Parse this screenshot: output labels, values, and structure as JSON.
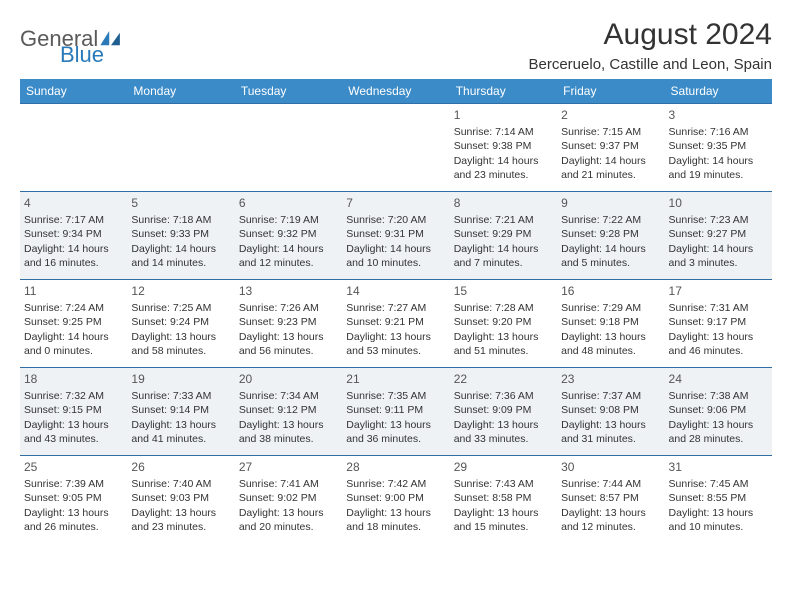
{
  "logo": {
    "text1": "General",
    "text2": "Blue"
  },
  "title": "August 2024",
  "location": "Berceruelo, Castille and Leon, Spain",
  "colors": {
    "header_bg": "#3b8bc8",
    "header_text": "#ffffff",
    "row_border": "#2f6fa6",
    "alt_row_bg": "#eef2f5",
    "text": "#333333",
    "logo_gray": "#5a5a5a",
    "logo_blue": "#2a7ab9"
  },
  "day_headers": [
    "Sunday",
    "Monday",
    "Tuesday",
    "Wednesday",
    "Thursday",
    "Friday",
    "Saturday"
  ],
  "weeks": [
    [
      null,
      null,
      null,
      null,
      {
        "n": "1",
        "sr": "7:14 AM",
        "ss": "9:38 PM",
        "dl": "14 hours and 23 minutes."
      },
      {
        "n": "2",
        "sr": "7:15 AM",
        "ss": "9:37 PM",
        "dl": "14 hours and 21 minutes."
      },
      {
        "n": "3",
        "sr": "7:16 AM",
        "ss": "9:35 PM",
        "dl": "14 hours and 19 minutes."
      }
    ],
    [
      {
        "n": "4",
        "sr": "7:17 AM",
        "ss": "9:34 PM",
        "dl": "14 hours and 16 minutes."
      },
      {
        "n": "5",
        "sr": "7:18 AM",
        "ss": "9:33 PM",
        "dl": "14 hours and 14 minutes."
      },
      {
        "n": "6",
        "sr": "7:19 AM",
        "ss": "9:32 PM",
        "dl": "14 hours and 12 minutes."
      },
      {
        "n": "7",
        "sr": "7:20 AM",
        "ss": "9:31 PM",
        "dl": "14 hours and 10 minutes."
      },
      {
        "n": "8",
        "sr": "7:21 AM",
        "ss": "9:29 PM",
        "dl": "14 hours and 7 minutes."
      },
      {
        "n": "9",
        "sr": "7:22 AM",
        "ss": "9:28 PM",
        "dl": "14 hours and 5 minutes."
      },
      {
        "n": "10",
        "sr": "7:23 AM",
        "ss": "9:27 PM",
        "dl": "14 hours and 3 minutes."
      }
    ],
    [
      {
        "n": "11",
        "sr": "7:24 AM",
        "ss": "9:25 PM",
        "dl": "14 hours and 0 minutes."
      },
      {
        "n": "12",
        "sr": "7:25 AM",
        "ss": "9:24 PM",
        "dl": "13 hours and 58 minutes."
      },
      {
        "n": "13",
        "sr": "7:26 AM",
        "ss": "9:23 PM",
        "dl": "13 hours and 56 minutes."
      },
      {
        "n": "14",
        "sr": "7:27 AM",
        "ss": "9:21 PM",
        "dl": "13 hours and 53 minutes."
      },
      {
        "n": "15",
        "sr": "7:28 AM",
        "ss": "9:20 PM",
        "dl": "13 hours and 51 minutes."
      },
      {
        "n": "16",
        "sr": "7:29 AM",
        "ss": "9:18 PM",
        "dl": "13 hours and 48 minutes."
      },
      {
        "n": "17",
        "sr": "7:31 AM",
        "ss": "9:17 PM",
        "dl": "13 hours and 46 minutes."
      }
    ],
    [
      {
        "n": "18",
        "sr": "7:32 AM",
        "ss": "9:15 PM",
        "dl": "13 hours and 43 minutes."
      },
      {
        "n": "19",
        "sr": "7:33 AM",
        "ss": "9:14 PM",
        "dl": "13 hours and 41 minutes."
      },
      {
        "n": "20",
        "sr": "7:34 AM",
        "ss": "9:12 PM",
        "dl": "13 hours and 38 minutes."
      },
      {
        "n": "21",
        "sr": "7:35 AM",
        "ss": "9:11 PM",
        "dl": "13 hours and 36 minutes."
      },
      {
        "n": "22",
        "sr": "7:36 AM",
        "ss": "9:09 PM",
        "dl": "13 hours and 33 minutes."
      },
      {
        "n": "23",
        "sr": "7:37 AM",
        "ss": "9:08 PM",
        "dl": "13 hours and 31 minutes."
      },
      {
        "n": "24",
        "sr": "7:38 AM",
        "ss": "9:06 PM",
        "dl": "13 hours and 28 minutes."
      }
    ],
    [
      {
        "n": "25",
        "sr": "7:39 AM",
        "ss": "9:05 PM",
        "dl": "13 hours and 26 minutes."
      },
      {
        "n": "26",
        "sr": "7:40 AM",
        "ss": "9:03 PM",
        "dl": "13 hours and 23 minutes."
      },
      {
        "n": "27",
        "sr": "7:41 AM",
        "ss": "9:02 PM",
        "dl": "13 hours and 20 minutes."
      },
      {
        "n": "28",
        "sr": "7:42 AM",
        "ss": "9:00 PM",
        "dl": "13 hours and 18 minutes."
      },
      {
        "n": "29",
        "sr": "7:43 AM",
        "ss": "8:58 PM",
        "dl": "13 hours and 15 minutes."
      },
      {
        "n": "30",
        "sr": "7:44 AM",
        "ss": "8:57 PM",
        "dl": "13 hours and 12 minutes."
      },
      {
        "n": "31",
        "sr": "7:45 AM",
        "ss": "8:55 PM",
        "dl": "13 hours and 10 minutes."
      }
    ]
  ]
}
